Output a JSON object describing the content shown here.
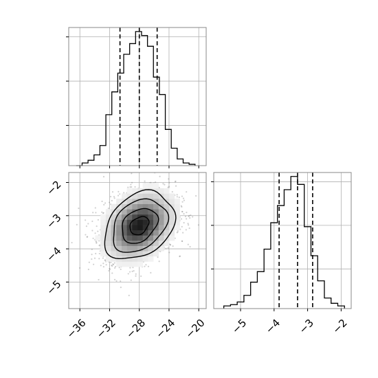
{
  "chart_data": [
    {
      "panel": "top-left",
      "type": "histogram",
      "parameter_index": 0,
      "title": "",
      "xlabel": "",
      "ylabel": "",
      "xlim": [
        -37.5,
        -19
      ],
      "ylim": [
        0,
        1.03
      ],
      "grid": true,
      "bin_edges": [
        -36.5,
        -35.7,
        -34.9,
        -34.1,
        -33.3,
        -32.5,
        -31.7,
        -30.9,
        -30.1,
        -29.3,
        -28.5,
        -27.7,
        -26.9,
        -26.1,
        -25.3,
        -24.5,
        -23.7,
        -22.9,
        -22.1,
        -21.3,
        -20.5
      ],
      "counts": [
        0.0,
        0.02,
        0.04,
        0.08,
        0.15,
        0.38,
        0.55,
        0.69,
        0.83,
        0.91,
        1.0,
        0.97,
        0.89,
        0.66,
        0.53,
        0.27,
        0.13,
        0.05,
        0.02,
        0.01
      ],
      "quantile_lines": [
        -30.6,
        -28.0,
        -25.6
      ],
      "xticks": [
        -36,
        -32,
        -28,
        -24,
        -20
      ],
      "xtick_labels_shown": false,
      "gridlines_y": [
        0.3,
        0.63,
        0.96
      ]
    },
    {
      "panel": "bottom-left",
      "type": "scatter",
      "subtype": "2d-density-contour",
      "xlabel": "",
      "ylabel": "",
      "xlim": [
        -37.5,
        -19
      ],
      "ylim": [
        -5.8,
        -1.7
      ],
      "grid": true,
      "xticks": [
        -36,
        -32,
        -28,
        -24,
        -20
      ],
      "xtick_labels": [
        "−36",
        "−32",
        "−28",
        "−24",
        "−20"
      ],
      "yticks": [
        -2,
        -3,
        -4,
        -5
      ],
      "ytick_labels": [
        "−2",
        "−3",
        "−4",
        "−5"
      ],
      "density_center": [
        -28.0,
        -3.3
      ],
      "density_spread": [
        2.3,
        0.5
      ],
      "correlation": 0.3,
      "contour_levels": [
        0.39,
        0.86,
        0.99,
        0.999
      ],
      "point_color": "#7a7a7a",
      "contour_color": "#000000"
    },
    {
      "panel": "bottom-right",
      "type": "histogram",
      "parameter_index": 1,
      "xlabel": "",
      "ylabel": "",
      "xlim": [
        -5.8,
        -1.7
      ],
      "ylim": [
        0,
        1.03
      ],
      "grid": true,
      "bin_edges": [
        -5.5,
        -5.3,
        -5.1,
        -4.9,
        -4.7,
        -4.5,
        -4.3,
        -4.1,
        -3.9,
        -3.7,
        -3.5,
        -3.3,
        -3.1,
        -2.9,
        -2.7,
        -2.5,
        -2.3,
        -2.1,
        -1.9
      ],
      "counts": [
        0.02,
        0.03,
        0.05,
        0.1,
        0.2,
        0.28,
        0.45,
        0.65,
        0.78,
        0.9,
        1.0,
        0.94,
        0.62,
        0.4,
        0.21,
        0.08,
        0.04,
        0.02
      ],
      "quantile_lines": [
        -3.85,
        -3.3,
        -2.85
      ],
      "xticks": [
        -5,
        -4,
        -3,
        -2
      ],
      "xtick_labels": [
        "−5",
        "−4",
        "−3",
        "−2"
      ],
      "gridlines_y": [
        0.3,
        0.63,
        0.96
      ]
    }
  ],
  "colors": {
    "frame": "#888888",
    "grid": "#b0b0b0",
    "line": "#000000",
    "points": "#7a7a7a"
  }
}
